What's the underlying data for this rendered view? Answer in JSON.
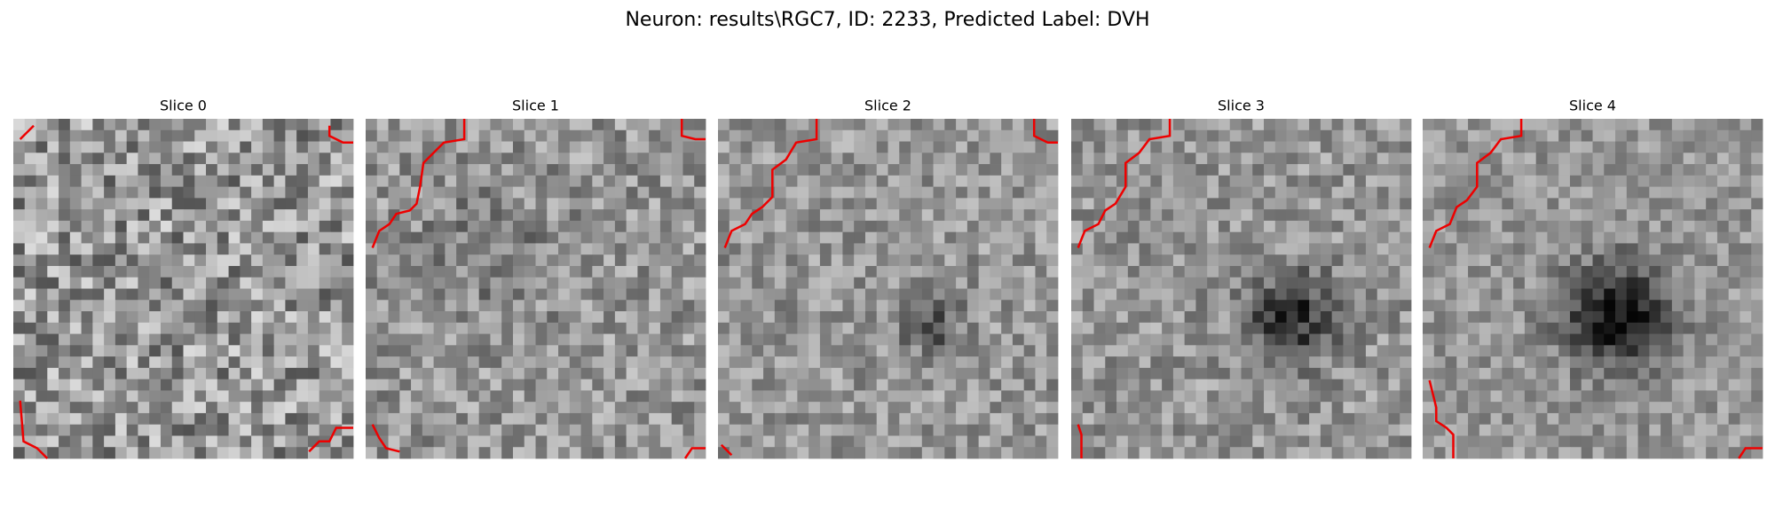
{
  "title": "Neuron: results\\RGC7, ID: 2233, Predicted Label: DVH",
  "panels": [
    {
      "title": "Slice 0"
    },
    {
      "title": "Slice 1"
    },
    {
      "title": "Slice 2"
    },
    {
      "title": "Slice 3"
    },
    {
      "title": "Slice 4"
    }
  ]
}
